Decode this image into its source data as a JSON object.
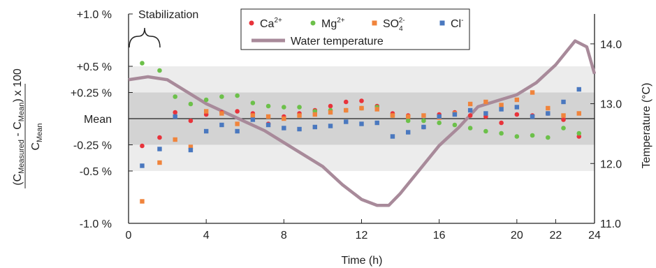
{
  "chart_data": {
    "type": "scatter",
    "title": "",
    "annotation": "Stabilization",
    "xlabel": "Time (h)",
    "xlim": [
      0,
      24
    ],
    "x_ticks": [
      0,
      4,
      8,
      12,
      16,
      20,
      22,
      24
    ],
    "x_tick_labels": [
      "0",
      "4",
      "8",
      "12",
      "16",
      "20",
      "22",
      "24"
    ],
    "ylabel_left": {
      "main": "(C",
      "sub_measured": "Measured",
      "minus": " - C",
      "sub_mean": "Mean",
      "close": ")",
      "factor": "x 100",
      "denominator": "C",
      "denominator_sub": "Mean"
    },
    "ylim_left": [
      -1.0,
      1.0
    ],
    "y_left_ticks": [
      {
        "value": 1.0,
        "label": "+1.0 %"
      },
      {
        "value": 0.5,
        "label": "+0.5 %"
      },
      {
        "value": 0.25,
        "label": "+0.25 %"
      },
      {
        "value": 0.0,
        "label": "Mean"
      },
      {
        "value": -0.25,
        "label": "-0.25 %"
      },
      {
        "value": -0.5,
        "label": "-0.5 %"
      },
      {
        "value": -1.0,
        "label": "-1.0 %"
      }
    ],
    "bands": [
      {
        "from": -0.5,
        "to": 0.5,
        "color": "#ececec"
      },
      {
        "from": -0.25,
        "to": 0.25,
        "color": "#d3d3d3"
      }
    ],
    "ylabel_right": "Temperature (°C)",
    "ylim_right": [
      11.0,
      14.5
    ],
    "y_right_ticks": [
      {
        "value": 11.0,
        "label": "11.0"
      },
      {
        "value": 12.0,
        "label": "12.0"
      },
      {
        "value": 13.0,
        "label": "13.0"
      },
      {
        "value": 14.0,
        "label": "14.0"
      }
    ],
    "legend_placement": "top-center",
    "series": [
      {
        "name": "Ca",
        "sup": "2+",
        "color": "#e8333b",
        "marker": "circle",
        "x": [
          0.7,
          1.6,
          2.4,
          3.2,
          4.0,
          4.8,
          5.6,
          6.4,
          7.2,
          8.0,
          8.8,
          9.6,
          10.4,
          11.2,
          12.0,
          12.8,
          13.6,
          14.4,
          15.2,
          16.0,
          16.8,
          17.6,
          18.4,
          19.2,
          20.0,
          20.8,
          21.6,
          22.4,
          23.2
        ],
        "y": [
          -0.26,
          -0.18,
          0.06,
          -0.02,
          0.04,
          0.06,
          0.07,
          0.05,
          -0.05,
          0.02,
          0.05,
          0.08,
          0.12,
          0.16,
          0.17,
          0.12,
          0.05,
          0.03,
          -0.08,
          0.04,
          0.06,
          0.03,
          0.02,
          -0.04,
          0.04,
          0.03,
          0.05,
          -0.01,
          -0.17
        ]
      },
      {
        "name": "Mg",
        "sup": "2+",
        "color": "#6cc04a",
        "marker": "circle",
        "x": [
          0.7,
          1.6,
          2.4,
          3.2,
          4.0,
          4.8,
          5.6,
          6.4,
          7.2,
          8.0,
          8.8,
          9.6,
          10.4,
          11.2,
          12.0,
          12.8,
          13.6,
          14.4,
          15.2,
          16.0,
          16.8,
          17.6,
          18.4,
          19.2,
          20.0,
          20.8,
          21.6,
          22.4,
          23.2
        ],
        "y": [
          0.53,
          0.46,
          0.21,
          0.14,
          0.18,
          0.21,
          0.22,
          0.15,
          0.12,
          0.11,
          0.11,
          0.07,
          0.08,
          0.08,
          0.1,
          0.11,
          0.03,
          -0.02,
          -0.02,
          -0.04,
          -0.06,
          -0.09,
          -0.12,
          -0.14,
          -0.17,
          -0.16,
          -0.18,
          -0.09,
          -0.14
        ]
      },
      {
        "name": "SO",
        "sub": "4",
        "sup": "2-",
        "color": "#f0843c",
        "marker": "square",
        "x": [
          0.7,
          1.6,
          2.4,
          3.2,
          4.0,
          4.8,
          5.6,
          6.4,
          7.2,
          8.0,
          8.8,
          9.6,
          10.4,
          11.2,
          12.0,
          12.8,
          13.6,
          14.4,
          15.2,
          16.0,
          16.8,
          17.6,
          18.4,
          19.2,
          20.0,
          20.8,
          21.6,
          22.4,
          23.2
        ],
        "y": [
          -0.79,
          -0.42,
          -0.2,
          -0.27,
          0.07,
          0.05,
          -0.05,
          0.03,
          0.02,
          0.0,
          0.03,
          0.04,
          0.06,
          0.08,
          0.1,
          0.09,
          0.03,
          0.02,
          0.03,
          0.01,
          0.05,
          0.14,
          0.16,
          0.13,
          0.18,
          0.25,
          0.1,
          0.03,
          0.05
        ]
      },
      {
        "name": "Cl",
        "sup": "-",
        "color": "#4a78bf",
        "marker": "square",
        "x": [
          0.7,
          1.6,
          2.4,
          3.2,
          4.0,
          4.8,
          5.6,
          6.4,
          7.2,
          8.0,
          8.8,
          9.6,
          10.4,
          11.2,
          12.0,
          12.8,
          13.6,
          14.4,
          15.2,
          16.0,
          16.8,
          17.6,
          18.4,
          19.2,
          20.0,
          20.8,
          21.6,
          22.4,
          23.2
        ],
        "y": [
          -0.45,
          -0.29,
          0.02,
          -0.3,
          -0.12,
          -0.06,
          -0.12,
          -0.01,
          -0.06,
          -0.09,
          -0.1,
          -0.08,
          -0.07,
          -0.03,
          -0.05,
          -0.04,
          -0.17,
          -0.13,
          -0.08,
          0.02,
          0.04,
          0.08,
          0.05,
          0.09,
          0.11,
          0.02,
          0.05,
          0.16,
          0.28
        ]
      }
    ],
    "temperature": {
      "name": "Water temperature",
      "color": "#a88a9a",
      "x": [
        0,
        1,
        2,
        3,
        4,
        5,
        6,
        7,
        8,
        9,
        10,
        11,
        12,
        12.8,
        13.4,
        14,
        15,
        16,
        17,
        18,
        19,
        20,
        21,
        22,
        23,
        23.6,
        24
      ],
      "y": [
        13.4,
        13.45,
        13.4,
        13.2,
        13.0,
        12.85,
        12.7,
        12.55,
        12.35,
        12.15,
        11.95,
        11.65,
        11.4,
        11.3,
        11.3,
        11.5,
        11.9,
        12.3,
        12.6,
        12.95,
        13.05,
        13.15,
        13.35,
        13.65,
        14.05,
        13.95,
        13.5
      ]
    }
  }
}
